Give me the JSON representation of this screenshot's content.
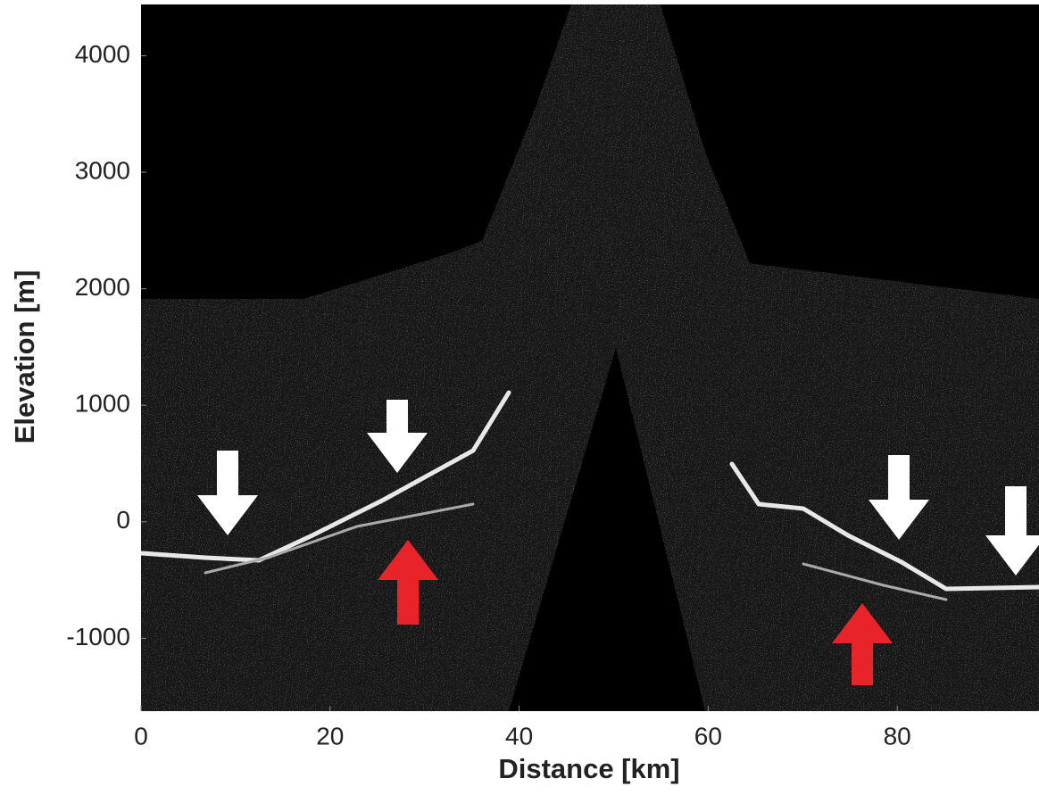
{
  "chart_data": {
    "type": "radargram",
    "xlabel": "Distance [km]",
    "ylabel": "Elevation [m]",
    "xlim": [
      0,
      95
    ],
    "ylim": [
      -1625,
      4440
    ],
    "xticks": [
      0,
      20,
      40,
      60,
      80
    ],
    "yticks": [
      -1000,
      0,
      1000,
      2000,
      3000,
      4000
    ]
  }
}
